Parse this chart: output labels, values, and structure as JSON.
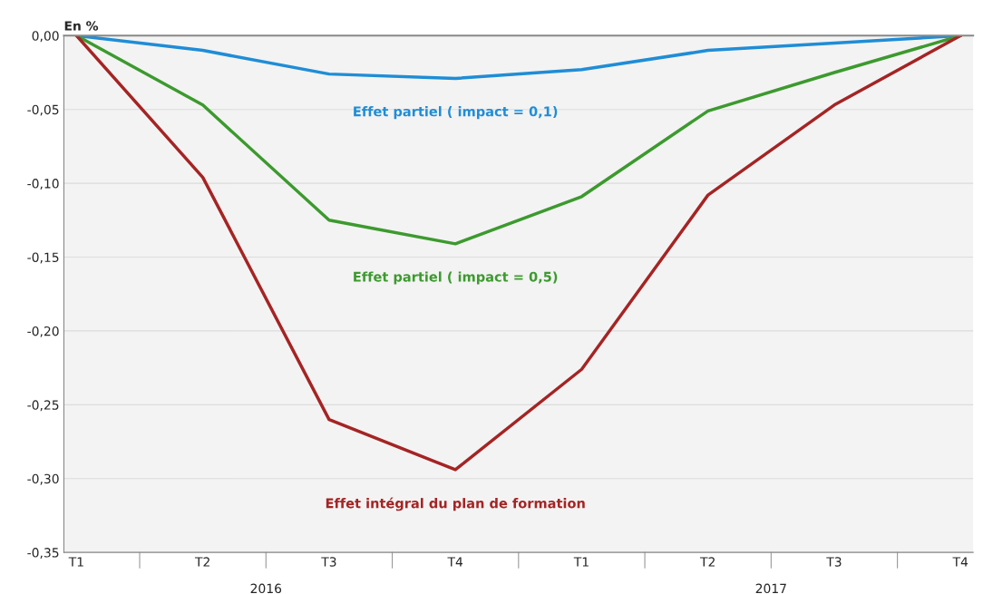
{
  "chart_data": {
    "type": "line",
    "ylabel": "En %",
    "categories": [
      "T1",
      "T2",
      "T3",
      "T4",
      "T1",
      "T2",
      "T3",
      "T4"
    ],
    "series": [
      {
        "name": "Effet partiel ( impact = 0,1)",
        "color": "#1f8dd6",
        "values": [
          0,
          -0.01,
          -0.026,
          -0.029,
          -0.023,
          -0.01,
          -0.005,
          0
        ]
      },
      {
        "name": "Effet partiel ( impact = 0,5)",
        "color": "#3c9a2e",
        "values": [
          0,
          -0.047,
          -0.125,
          -0.141,
          -0.109,
          -0.051,
          -0.025,
          0
        ]
      },
      {
        "name": "Effet intégral du plan de formation",
        "color": "#a52424",
        "values": [
          0,
          -0.096,
          -0.26,
          -0.294,
          -0.226,
          -0.108,
          -0.047,
          0
        ]
      }
    ],
    "ylim": [
      -0.35,
      0
    ],
    "yticks": [
      {
        "value": -0.35,
        "label": "-0,35"
      },
      {
        "value": -0.3,
        "label": "-0,30"
      },
      {
        "value": -0.25,
        "label": "-0,25"
      },
      {
        "value": -0.2,
        "label": "-0,20"
      },
      {
        "value": -0.15,
        "label": "-0,15"
      },
      {
        "value": -0.1,
        "label": "-0,10"
      },
      {
        "value": -0.05,
        "label": "-0,05"
      },
      {
        "value": 0,
        "label": "0,00"
      }
    ],
    "grid": "y",
    "legend": false,
    "marker": "none",
    "line_style": "solid",
    "annotations": [
      "2016",
      "2017"
    ]
  }
}
